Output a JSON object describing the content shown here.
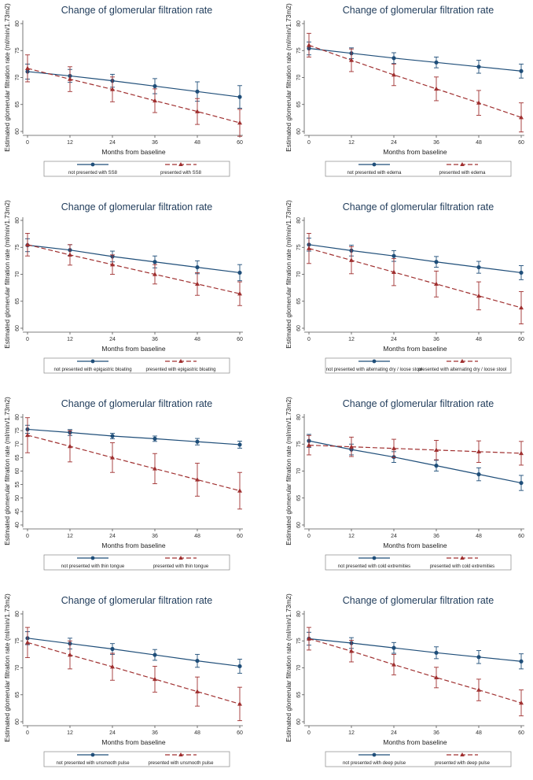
{
  "chart_data": [
    {
      "type": "line",
      "title": "Change of glomerular filtration rate",
      "xlabel": "Months from baseline",
      "ylabel": "Estimated glomerular filtration rate (ml/min/1.73m2)",
      "x": [
        0,
        12,
        24,
        36,
        48,
        60
      ],
      "xlim": [
        0,
        60
      ],
      "ylim": [
        60,
        80
      ],
      "yticks": [
        60,
        65,
        70,
        75,
        80
      ],
      "series": [
        {
          "name": "not presented with SS8",
          "values": [
            71.1,
            70.3,
            69.4,
            68.4,
            67.4,
            66.4
          ],
          "err": [
            1.4,
            1.2,
            1.2,
            1.4,
            1.8,
            2.1
          ]
        },
        {
          "name": "presented with SS8",
          "values": [
            71.7,
            69.7,
            67.8,
            65.7,
            63.7,
            61.6
          ],
          "err": [
            2.5,
            2.3,
            2.3,
            2.2,
            2.4,
            2.5
          ]
        }
      ]
    },
    {
      "type": "line",
      "title": "Change of glomerular filtration rate",
      "xlabel": "Months from baseline",
      "ylabel": "Estimated glomerular filtration rate (ml/min/1.73m2)",
      "x": [
        0,
        12,
        24,
        36,
        48,
        60
      ],
      "xlim": [
        0,
        60
      ],
      "ylim": [
        60,
        80
      ],
      "yticks": [
        60,
        65,
        70,
        75,
        80
      ],
      "series": [
        {
          "name": "not presented with edema",
          "values": [
            75.4,
            74.5,
            73.6,
            72.8,
            72.0,
            71.2
          ],
          "err": [
            1.2,
            1.0,
            1.0,
            1.0,
            1.2,
            1.3
          ]
        },
        {
          "name": "presented with edema",
          "values": [
            76.0,
            73.2,
            70.5,
            67.9,
            65.3,
            62.6
          ],
          "err": [
            2.2,
            2.1,
            2.0,
            2.2,
            2.3,
            2.7
          ]
        }
      ]
    },
    {
      "type": "line",
      "title": "Change of glomerular filtration rate",
      "xlabel": "Months from baseline",
      "ylabel": "Estimated glomerular filtration rate (ml/min/1.73m2)",
      "x": [
        0,
        12,
        24,
        36,
        48,
        60
      ],
      "xlim": [
        0,
        60
      ],
      "ylim": [
        60,
        80
      ],
      "yticks": [
        60,
        65,
        70,
        75,
        80
      ],
      "series": [
        {
          "name": "not presented with epigastric bloating",
          "values": [
            75.4,
            74.5,
            73.3,
            72.3,
            71.3,
            70.3
          ],
          "err": [
            1.2,
            1.0,
            1.0,
            1.1,
            1.2,
            1.5
          ]
        },
        {
          "name": "presented with epigastric bloating",
          "values": [
            75.5,
            73.6,
            71.8,
            70.0,
            68.2,
            66.4
          ],
          "err": [
            2.1,
            1.9,
            1.8,
            1.8,
            2.1,
            2.2
          ]
        }
      ]
    },
    {
      "type": "line",
      "title": "Change of glomerular filtration rate",
      "xlabel": "Months from baseline",
      "ylabel": "Estimated glomerular filtration rate (ml/min/1.73m2)",
      "x": [
        0,
        12,
        24,
        36,
        48,
        60
      ],
      "xlim": [
        0,
        60
      ],
      "ylim": [
        60,
        80
      ],
      "yticks": [
        60,
        65,
        70,
        75,
        80
      ],
      "series": [
        {
          "name": "not presented with alternating dry / loose stool",
          "values": [
            75.5,
            74.4,
            73.4,
            72.3,
            71.3,
            70.3
          ],
          "err": [
            1.2,
            1.0,
            1.0,
            1.0,
            1.1,
            1.3
          ]
        },
        {
          "name": "presented with alternating dry / loose stool",
          "values": [
            74.8,
            72.6,
            70.4,
            68.2,
            66.0,
            63.8
          ],
          "err": [
            2.8,
            2.5,
            2.5,
            2.4,
            2.6,
            3.0
          ]
        }
      ]
    },
    {
      "type": "line",
      "title": "Change of glomerular filtration rate",
      "xlabel": "Months from baseline",
      "ylabel": "Estimated glomerular filtration rate (ml/min/1.73m2)",
      "x": [
        0,
        12,
        24,
        36,
        48,
        60
      ],
      "xlim": [
        0,
        60
      ],
      "ylim": [
        40,
        80
      ],
      "yticks": [
        40,
        45,
        50,
        55,
        60,
        65,
        70,
        75,
        80
      ],
      "series": [
        {
          "name": "not presented with thin tongue",
          "values": [
            75.5,
            74.3,
            73.0,
            72.0,
            70.9,
            69.8
          ],
          "err": [
            1.5,
            1.1,
            1.0,
            1.0,
            1.2,
            1.3
          ]
        },
        {
          "name": "presented with thin tongue",
          "values": [
            73.3,
            69.2,
            65.0,
            60.9,
            56.8,
            52.7
          ],
          "err": [
            6.5,
            5.8,
            5.5,
            5.6,
            6.1,
            6.8
          ]
        }
      ]
    },
    {
      "type": "line",
      "title": "Change of glomerular filtration rate",
      "xlabel": "Months from baseline",
      "ylabel": "Estimated glomerular filtration rate (ml/min/1.73m2)",
      "x": [
        0,
        12,
        24,
        36,
        48,
        60
      ],
      "xlim": [
        0,
        60
      ],
      "ylim": [
        60,
        80
      ],
      "yticks": [
        60,
        65,
        70,
        75,
        80
      ],
      "series": [
        {
          "name": "not presented with cold extremities",
          "values": [
            75.6,
            74.0,
            72.6,
            71.0,
            69.4,
            67.8
          ],
          "err": [
            1.2,
            1.0,
            1.0,
            1.0,
            1.2,
            1.4
          ]
        },
        {
          "name": "presented with cold extremities",
          "values": [
            74.8,
            74.5,
            74.2,
            73.9,
            73.6,
            73.3
          ],
          "err": [
            1.8,
            1.8,
            1.7,
            1.8,
            2.0,
            2.2
          ]
        }
      ]
    },
    {
      "type": "line",
      "title": "Change of glomerular filtration rate",
      "xlabel": "Months from baseline",
      "ylabel": "Estimated glomerular filtration rate (ml/min/1.73m2)",
      "x": [
        0,
        12,
        24,
        36,
        48,
        60
      ],
      "xlim": [
        0,
        60
      ],
      "ylim": [
        60,
        80
      ],
      "yticks": [
        60,
        65,
        70,
        75,
        80
      ],
      "series": [
        {
          "name": "not presented with unsmooth pulse",
          "values": [
            75.5,
            74.5,
            73.5,
            72.4,
            71.3,
            70.3
          ],
          "err": [
            1.2,
            1.0,
            1.0,
            1.0,
            1.2,
            1.3
          ]
        },
        {
          "name": "presented with unsmooth pulse",
          "values": [
            74.7,
            72.4,
            70.2,
            67.9,
            65.6,
            63.3
          ],
          "err": [
            2.8,
            2.6,
            2.5,
            2.4,
            2.7,
            3.1
          ]
        }
      ]
    },
    {
      "type": "line",
      "title": "Change of glomerular filtration rate",
      "xlabel": "Months from baseline",
      "ylabel": "Estimated glomerular filtration rate (ml/min/1.73m2)",
      "x": [
        0,
        12,
        24,
        36,
        48,
        60
      ],
      "xlim": [
        0,
        60
      ],
      "ylim": [
        60,
        80
      ],
      "yticks": [
        60,
        65,
        70,
        75,
        80
      ],
      "series": [
        {
          "name": "not presented with deep pulse",
          "values": [
            75.4,
            74.6,
            73.7,
            72.8,
            72.0,
            71.2
          ],
          "err": [
            1.2,
            1.0,
            1.0,
            1.1,
            1.2,
            1.4
          ]
        },
        {
          "name": "presented with deep pulse",
          "values": [
            75.4,
            73.1,
            70.6,
            68.2,
            65.9,
            63.5
          ],
          "err": [
            2.1,
            2.0,
            1.9,
            1.9,
            2.0,
            2.4
          ]
        }
      ]
    }
  ],
  "colors": {
    "series1": "#1f4e79",
    "series2": "#a03030",
    "axis": "#555555"
  }
}
